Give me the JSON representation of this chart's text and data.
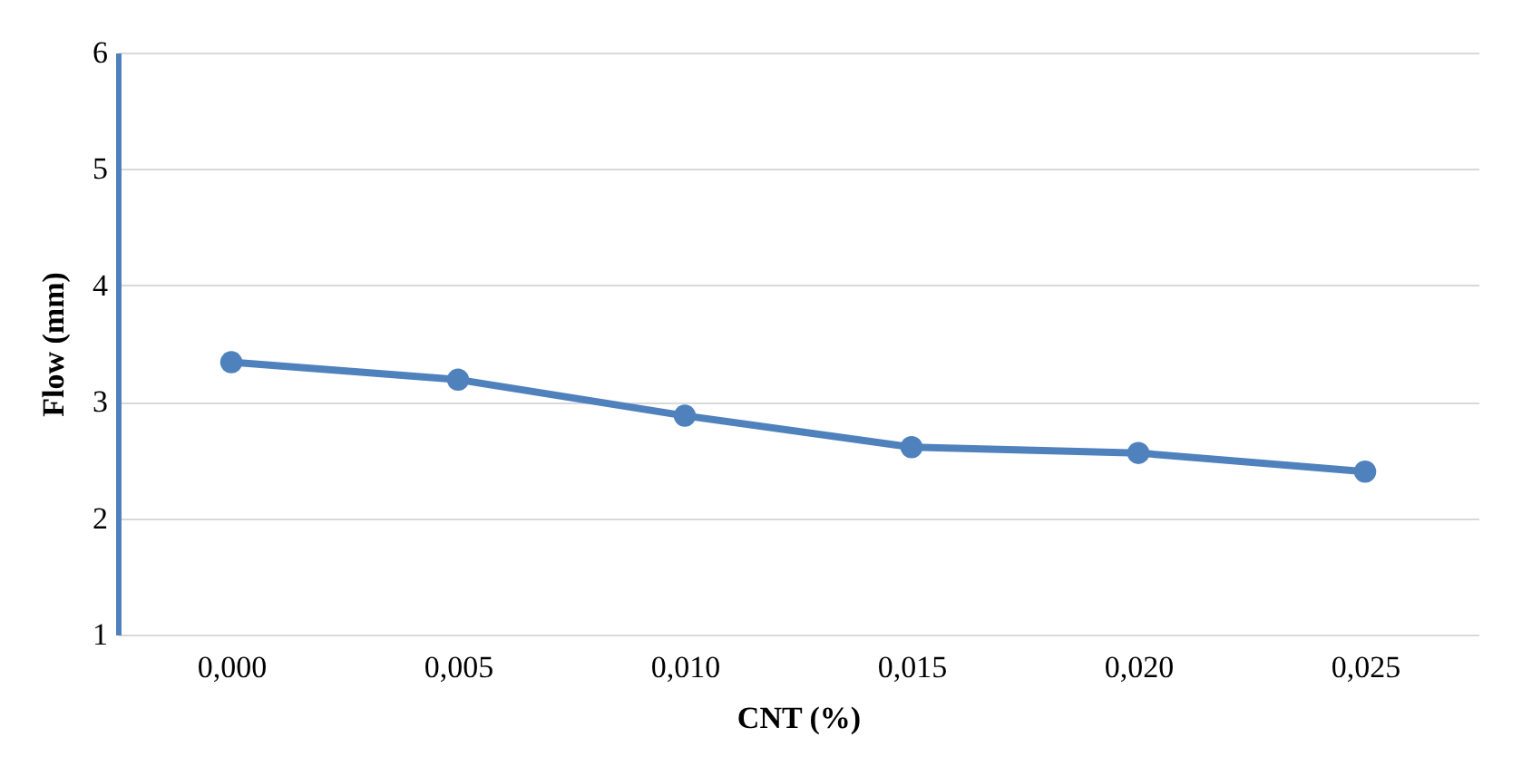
{
  "chart_data": {
    "type": "line",
    "xlabel": "CNT (%)",
    "ylabel": "Flow (mm)",
    "categories": [
      "0,000",
      "0,005",
      "0,010",
      "0,015",
      "0,020",
      "0,025"
    ],
    "series": [
      {
        "color": "#4f81bd",
        "values": [
          3.34,
          3.19,
          2.88,
          2.61,
          2.56,
          2.4
        ]
      }
    ],
    "ylim": [
      1,
      6
    ],
    "yticks": [
      1,
      2,
      3,
      4,
      5,
      6
    ],
    "grid": "y",
    "marker": "circle",
    "line_style": "solid",
    "legend": false
  }
}
